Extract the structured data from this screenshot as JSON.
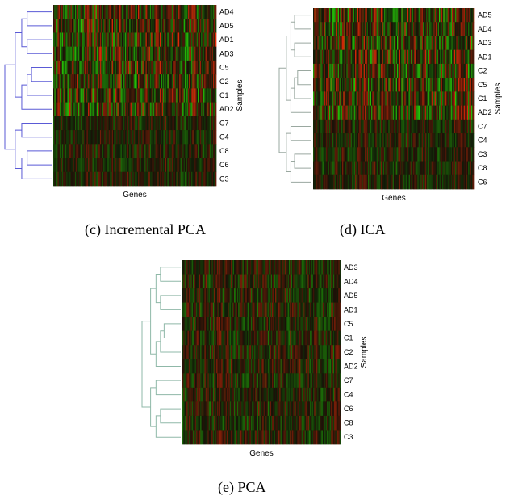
{
  "panels": [
    {
      "id": "c",
      "caption": "(c) Incremental PCA",
      "xlabel": "Genes",
      "ylabel": "Samples",
      "samples": [
        "AD4",
        "AD5",
        "AD1",
        "AD3",
        "C5",
        "C2",
        "C1",
        "AD2",
        "C7",
        "C4",
        "C8",
        "C6",
        "C3"
      ],
      "dendrogram_color": "#5a5ad6"
    },
    {
      "id": "d",
      "caption": "(d) ICA",
      "xlabel": "Genes",
      "ylabel": "Samples",
      "samples": [
        "AD5",
        "AD4",
        "AD3",
        "AD1",
        "C2",
        "C5",
        "C1",
        "AD2",
        "C7",
        "C4",
        "C3",
        "C8",
        "C6"
      ],
      "dendrogram_color": "#9aa8a0"
    },
    {
      "id": "e",
      "caption": "(e) PCA",
      "xlabel": "Genes",
      "ylabel": "Samples",
      "samples": [
        "AD3",
        "AD4",
        "AD5",
        "AD1",
        "C5",
        "C1",
        "C2",
        "AD2",
        "C7",
        "C4",
        "C6",
        "C8",
        "C3"
      ],
      "dendrogram_color": "#8fb8a8"
    }
  ],
  "chart_data": [
    {
      "type": "heatmap",
      "xlabel": "Genes",
      "ylabel": "Samples",
      "rows": [
        "AD4",
        "AD5",
        "AD1",
        "AD3",
        "C5",
        "C2",
        "C1",
        "AD2",
        "C7",
        "C4",
        "C8",
        "C6",
        "C3"
      ]
    },
    {
      "type": "heatmap",
      "xlabel": "Genes",
      "ylabel": "Samples",
      "rows": [
        "AD5",
        "AD4",
        "AD3",
        "AD1",
        "C2",
        "C5",
        "C1",
        "AD2",
        "C7",
        "C4",
        "C3",
        "C8",
        "C6"
      ]
    },
    {
      "type": "heatmap",
      "xlabel": "Genes",
      "ylabel": "Samples",
      "rows": [
        "AD3",
        "AD4",
        "AD5",
        "AD1",
        "C5",
        "C1",
        "C2",
        "AD2",
        "C7",
        "C4",
        "C6",
        "C8",
        "C3"
      ]
    }
  ]
}
